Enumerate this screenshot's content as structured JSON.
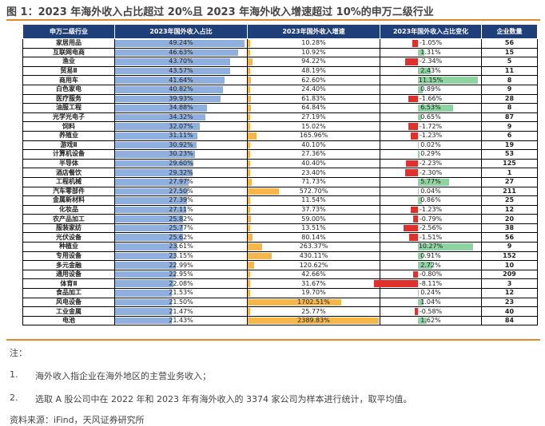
{
  "title": "图 1：2023 年海外收入占比超过 20%且 2023 年海外收入增速超过 10%的申万二级行业",
  "headers": [
    "申万二级行业",
    "2023年国外收入占比",
    "2023年国外收入增速",
    "2023年国外收入占比变化",
    "企业数量"
  ],
  "rows": [
    {
      "name": "家居用品",
      "share": "49.24%",
      "share_v": 49.24,
      "growth": "10.28%",
      "growth_v": 10.28,
      "change": "-1.05%",
      "change_v": -1.05,
      "count": "56"
    },
    {
      "name": "互联网电商",
      "share": "46.63%",
      "share_v": 46.63,
      "growth": "10.92%",
      "growth_v": 10.92,
      "change": "1.31%",
      "change_v": 1.31,
      "count": "15"
    },
    {
      "name": "渔业",
      "share": "43.70%",
      "share_v": 43.7,
      "growth": "94.22%",
      "growth_v": 94.22,
      "change": "-2.34%",
      "change_v": -2.34,
      "count": "5"
    },
    {
      "name": "贸易Ⅱ",
      "share": "43.57%",
      "share_v": 43.57,
      "growth": "48.19%",
      "growth_v": 48.19,
      "change": "2.43%",
      "change_v": 2.43,
      "count": "11"
    },
    {
      "name": "商用车",
      "share": "41.64%",
      "share_v": 41.64,
      "growth": "62.60%",
      "growth_v": 62.6,
      "change": "11.15%",
      "change_v": 11.15,
      "count": "8"
    },
    {
      "name": "白色家电",
      "share": "40.82%",
      "share_v": 40.82,
      "growth": "24.40%",
      "growth_v": 24.4,
      "change": "0.89%",
      "change_v": 0.89,
      "count": "9"
    },
    {
      "name": "医疗服务",
      "share": "39.93%",
      "share_v": 39.93,
      "growth": "61.83%",
      "growth_v": 61.83,
      "change": "-1.66%",
      "change_v": -1.66,
      "count": "28"
    },
    {
      "name": "油服工程",
      "share": "34.88%",
      "share_v": 34.88,
      "growth": "64.84%",
      "growth_v": 64.84,
      "change": "6.53%",
      "change_v": 6.53,
      "count": "8"
    },
    {
      "name": "光学光电子",
      "share": "34.32%",
      "share_v": 34.32,
      "growth": "27.19%",
      "growth_v": 27.19,
      "change": "0.65%",
      "change_v": 0.65,
      "count": "87"
    },
    {
      "name": "饲料",
      "share": "32.07%",
      "share_v": 32.07,
      "growth": "15.02%",
      "growth_v": 15.02,
      "change": "-1.72%",
      "change_v": -1.72,
      "count": "9"
    },
    {
      "name": "养殖业",
      "share": "31.11%",
      "share_v": 31.11,
      "growth": "165.96%",
      "growth_v": 165.96,
      "change": "-1.23%",
      "change_v": -1.23,
      "count": "6"
    },
    {
      "name": "游戏Ⅱ",
      "share": "30.92%",
      "share_v": 30.92,
      "growth": "40.10%",
      "growth_v": 40.1,
      "change": "0.02%",
      "change_v": 0.02,
      "count": "19"
    },
    {
      "name": "计算机设备",
      "share": "30.23%",
      "share_v": 30.23,
      "growth": "27.36%",
      "growth_v": 27.36,
      "change": "0.29%",
      "change_v": 0.29,
      "count": "53"
    },
    {
      "name": "半导体",
      "share": "29.60%",
      "share_v": 29.6,
      "growth": "40.40%",
      "growth_v": 40.4,
      "change": "-2.23%",
      "change_v": -2.23,
      "count": "125"
    },
    {
      "name": "酒店餐饮",
      "share": "29.32%",
      "share_v": 29.32,
      "growth": "23.40%",
      "growth_v": 23.4,
      "change": "-2.30%",
      "change_v": -2.3,
      "count": "1"
    },
    {
      "name": "工程机械",
      "share": "27.97%",
      "share_v": 27.97,
      "growth": "71.73%",
      "growth_v": 71.73,
      "change": "5.77%",
      "change_v": 5.77,
      "count": "27"
    },
    {
      "name": "汽车零部件",
      "share": "27.50%",
      "share_v": 27.5,
      "growth": "572.70%",
      "growth_v": 572.7,
      "change": "0.04%",
      "change_v": 0.04,
      "count": "211"
    },
    {
      "name": "金属新材料",
      "share": "27.39%",
      "share_v": 27.39,
      "growth": "11.54%",
      "growth_v": 11.54,
      "change": "0.86%",
      "change_v": 0.86,
      "count": "25"
    },
    {
      "name": "化妆品",
      "share": "27.11%",
      "share_v": 27.11,
      "growth": "37.73%",
      "growth_v": 37.73,
      "change": "-1.23%",
      "change_v": -1.23,
      "count": "12"
    },
    {
      "name": "农产品加工",
      "share": "25.82%",
      "share_v": 25.82,
      "growth": "59.00%",
      "growth_v": 59.0,
      "change": "-0.79%",
      "change_v": -0.79,
      "count": "20"
    },
    {
      "name": "服装家纺",
      "share": "25.77%",
      "share_v": 25.77,
      "growth": "13.51%",
      "growth_v": 13.51,
      "change": "-2.56%",
      "change_v": -2.56,
      "count": "38"
    },
    {
      "name": "光伏设备",
      "share": "25.62%",
      "share_v": 25.62,
      "growth": "80.14%",
      "growth_v": 80.14,
      "change": "-1.51%",
      "change_v": -1.51,
      "count": "56"
    },
    {
      "name": "种植业",
      "share": "23.61%",
      "share_v": 23.61,
      "growth": "263.37%",
      "growth_v": 263.37,
      "change": "10.27%",
      "change_v": 10.27,
      "count": "9"
    },
    {
      "name": "专用设备",
      "share": "23.15%",
      "share_v": 23.15,
      "growth": "430.11%",
      "growth_v": 430.11,
      "change": "0.91%",
      "change_v": 0.91,
      "count": "152"
    },
    {
      "name": "多元金融",
      "share": "22.99%",
      "share_v": 22.99,
      "growth": "120.62%",
      "growth_v": 120.62,
      "change": "2.72%",
      "change_v": 2.72,
      "count": "10"
    },
    {
      "name": "通用设备",
      "share": "22.95%",
      "share_v": 22.95,
      "growth": "42.66%",
      "growth_v": 42.66,
      "change": "-0.80%",
      "change_v": -0.8,
      "count": "209"
    },
    {
      "name": "体育Ⅱ",
      "share": "22.08%",
      "share_v": 22.08,
      "growth": "31.67%",
      "growth_v": 31.67,
      "change": "-8.11%",
      "change_v": -8.11,
      "count": "3"
    },
    {
      "name": "食品加工",
      "share": "21.53%",
      "share_v": 21.53,
      "growth": "19.70%",
      "growth_v": 19.7,
      "change": "0.24%",
      "change_v": 0.24,
      "count": "12"
    },
    {
      "name": "风电设备",
      "share": "21.50%",
      "share_v": 21.5,
      "growth": "1702.51%",
      "growth_v": 1702.51,
      "change": "1.04%",
      "change_v": 1.04,
      "count": "23"
    },
    {
      "name": "工业金属",
      "share": "21.47%",
      "share_v": 21.47,
      "growth": "25.77%",
      "growth_v": 25.77,
      "change": "-0.58%",
      "change_v": -0.58,
      "count": "40"
    },
    {
      "name": "电池",
      "share": "21.43%",
      "share_v": 21.43,
      "growth": "2389.83%",
      "growth_v": 2389.83,
      "change": "1.62%",
      "change_v": 1.62,
      "count": "84"
    }
  ],
  "notes": {
    "label": "注：",
    "item1_num": "1.",
    "item1": "海外收入指企业在海外地区的主营业务收入；",
    "item2_num": "2.",
    "item2": "选取 A 股公司中在 2022 年和 2023 年有海外收入的 3374 家公司为样本进行统计，取平均值。",
    "source": "资料来源：iFind，天风证券研究所"
  },
  "colors": {
    "header_bg": "#1f3f7a",
    "share_bar": "#8fb0de",
    "growth_bar": "#f6b64a",
    "neg_bar": "#e0302c",
    "pos_bar": "#8fd3a3",
    "accent_line": "#e08a2a"
  }
}
